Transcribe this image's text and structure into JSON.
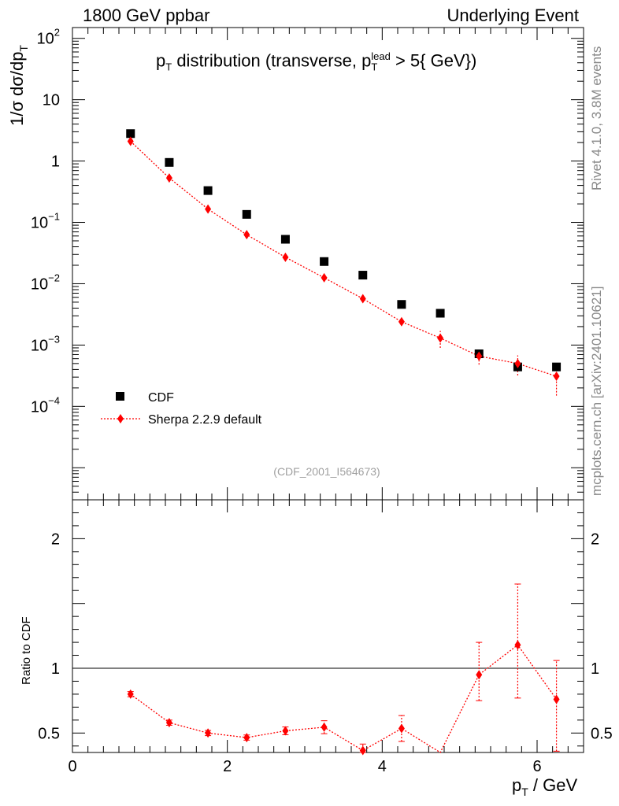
{
  "header": {
    "left": "1800 GeV ppbar",
    "right": "Underlying Event"
  },
  "side_labels": {
    "rivet": "Rivet 4.1.0,  3.8M events",
    "mcplots": "mcplots.cern.ch [arXiv:2401.10621]"
  },
  "chart_data": [
    {
      "type": "scatter",
      "panel": "main",
      "title": {
        "p": "p",
        "T": "T",
        "text1": " distribution (transverse, p",
        "sup": "lead",
        "text2": " > 5{ GeV})"
      },
      "ylabel": "1/σ  dσ/dp_T",
      "yscale": "log",
      "ylim": [
        3e-06,
        150
      ],
      "xlim": [
        0,
        6.6
      ],
      "y_ticks": [
        {
          "value": 0.0001,
          "base": "10",
          "exp": "−4"
        },
        {
          "value": 0.001,
          "base": "10",
          "exp": "−3"
        },
        {
          "value": 0.01,
          "base": "10",
          "exp": "−2"
        },
        {
          "value": 0.1,
          "base": "10",
          "exp": "−1"
        },
        {
          "value": 1,
          "base": "1",
          "exp": ""
        },
        {
          "value": 10,
          "base": "10",
          "exp": ""
        },
        {
          "value": 100,
          "base": "10",
          "exp": "2"
        }
      ],
      "watermark": "(CDF_2001_I564673)",
      "legend": {
        "position": "bottom-left",
        "entries": [
          "CDF",
          "Sherpa 2.2.9 default"
        ]
      },
      "series": [
        {
          "name": "CDF",
          "marker": "square",
          "color": "#000000",
          "x": [
            0.75,
            1.25,
            1.75,
            2.25,
            2.75,
            3.25,
            3.75,
            4.25,
            4.75,
            5.25,
            5.75,
            6.25
          ],
          "y": [
            2.8,
            0.95,
            0.33,
            0.135,
            0.053,
            0.023,
            0.0138,
            0.0046,
            0.0033,
            0.00072,
            0.00044,
            0.00044
          ]
        },
        {
          "name": "Sherpa 2.2.9 default",
          "marker": "diamond",
          "color": "#ff0000",
          "x": [
            0.75,
            1.25,
            1.75,
            2.25,
            2.75,
            3.25,
            3.75,
            4.25,
            4.75,
            5.25,
            5.75,
            6.25
          ],
          "y": [
            2.1,
            0.53,
            0.165,
            0.063,
            0.027,
            0.0125,
            0.0057,
            0.0024,
            0.0013,
            0.00066,
            0.0005,
            0.00031
          ],
          "yerr_low": [
            0,
            0,
            0,
            0,
            0,
            0,
            0,
            0,
            0.0004,
            0.00018,
            0.00018,
            0.00016
          ],
          "yerr_high": [
            0,
            0,
            0,
            0,
            0,
            0,
            0,
            0,
            0.0004,
            0.00018,
            0.00018,
            0.00016
          ]
        }
      ]
    },
    {
      "type": "line",
      "panel": "ratio",
      "ylabel": "Ratio to CDF",
      "xlabel": "p_T / GeV",
      "ylim": [
        0.35,
        2.3
      ],
      "xlim": [
        0,
        6.6
      ],
      "reference_line": 1,
      "x_ticks": [
        0,
        2,
        4,
        6
      ],
      "y_ticks": [
        0.5,
        1,
        2
      ],
      "series": [
        {
          "name": "Sherpa 2.2.9 default / CDF",
          "color": "#ff0000",
          "x": [
            0.75,
            1.25,
            1.75,
            2.25,
            2.75,
            3.25,
            3.75,
            4.25,
            4.75,
            5.25,
            5.75,
            6.25
          ],
          "y": [
            0.8,
            0.58,
            0.5,
            0.465,
            0.517,
            0.545,
            0.365,
            0.535,
            0.33,
            0.95,
            1.18,
            0.76
          ],
          "yerr_low": [
            0.02,
            0.02,
            0.02,
            0.02,
            0.03,
            0.05,
            0.05,
            0.1,
            0.0,
            0.2,
            0.41,
            0.4
          ],
          "yerr_high": [
            0.02,
            0.02,
            0.02,
            0.02,
            0.03,
            0.05,
            0.05,
            0.1,
            0.0,
            0.25,
            0.47,
            0.3
          ]
        }
      ]
    }
  ]
}
